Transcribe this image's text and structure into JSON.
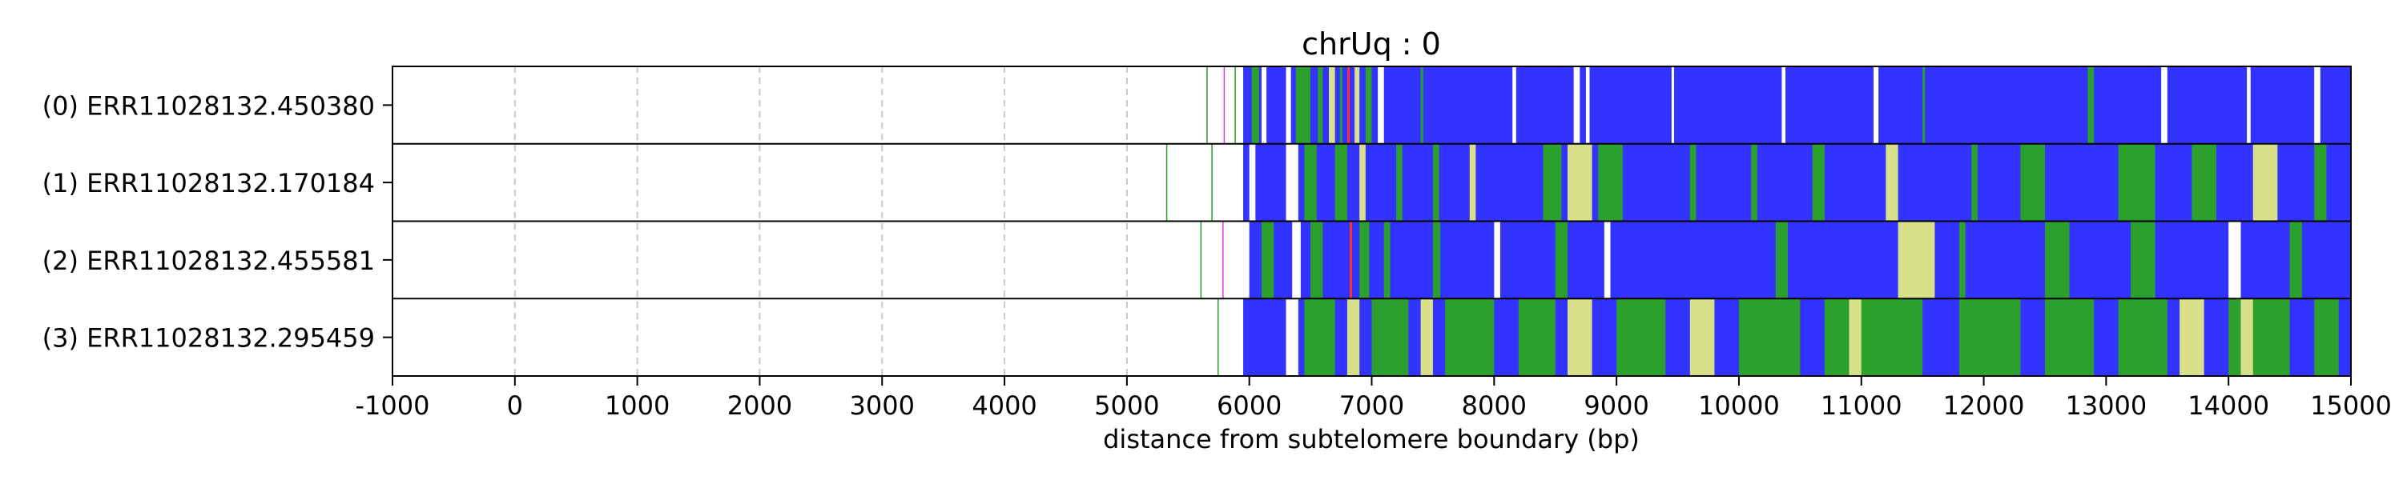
{
  "chart_data": {
    "type": "heatmap",
    "title": "chrUq : 0",
    "xlabel": "distance from subtelomere boundary (bp)",
    "ylabel": "",
    "xlim": [
      -1000,
      15000
    ],
    "xticks": [
      -1000,
      0,
      1000,
      2000,
      3000,
      4000,
      5000,
      6000,
      7000,
      8000,
      9000,
      10000,
      11000,
      12000,
      13000,
      14000,
      15000
    ],
    "grid": "x-dashed",
    "colors": {
      "blue": "#3333ff",
      "green": "#2ca02c",
      "yellow": "#d9e08a",
      "red": "#ff3030",
      "magenta": "#e040e0",
      "white": "#ffffff"
    },
    "reads": [
      {
        "label": "(0) ERR11028132.450380",
        "start": 5950,
        "base": "blue",
        "segments": [
          {
            "x0": 5650,
            "x1": 5660,
            "c": "green"
          },
          {
            "x0": 5790,
            "x1": 5800,
            "c": "magenta"
          },
          {
            "x0": 5880,
            "x1": 5890,
            "c": "green"
          },
          {
            "x0": 6020,
            "x1": 6080,
            "c": "green"
          },
          {
            "x0": 6100,
            "x1": 6140,
            "c": "white"
          },
          {
            "x0": 6300,
            "x1": 6340,
            "c": "white"
          },
          {
            "x0": 6380,
            "x1": 6500,
            "c": "green"
          },
          {
            "x0": 6560,
            "x1": 6600,
            "c": "green"
          },
          {
            "x0": 6650,
            "x1": 6700,
            "c": "yellow"
          },
          {
            "x0": 6740,
            "x1": 6760,
            "c": "green"
          },
          {
            "x0": 6800,
            "x1": 6820,
            "c": "red"
          },
          {
            "x0": 6860,
            "x1": 6900,
            "c": "yellow"
          },
          {
            "x0": 6950,
            "x1": 7000,
            "c": "green"
          },
          {
            "x0": 7050,
            "x1": 7100,
            "c": "white"
          },
          {
            "x0": 7400,
            "x1": 7420,
            "c": "green"
          },
          {
            "x0": 8150,
            "x1": 8180,
            "c": "white"
          },
          {
            "x0": 8650,
            "x1": 8700,
            "c": "white"
          },
          {
            "x0": 8750,
            "x1": 8780,
            "c": "white"
          },
          {
            "x0": 9450,
            "x1": 9470,
            "c": "white"
          },
          {
            "x0": 10350,
            "x1": 10380,
            "c": "white"
          },
          {
            "x0": 11100,
            "x1": 11140,
            "c": "white"
          },
          {
            "x0": 11500,
            "x1": 11520,
            "c": "green"
          },
          {
            "x0": 12850,
            "x1": 12900,
            "c": "green"
          },
          {
            "x0": 13450,
            "x1": 13500,
            "c": "white"
          },
          {
            "x0": 14150,
            "x1": 14180,
            "c": "white"
          },
          {
            "x0": 14700,
            "x1": 14750,
            "c": "white"
          }
        ]
      },
      {
        "label": "(1) ERR11028132.170184",
        "start": 5950,
        "base": "blue",
        "segments": [
          {
            "x0": 5320,
            "x1": 5330,
            "c": "green"
          },
          {
            "x0": 5690,
            "x1": 5700,
            "c": "green"
          },
          {
            "x0": 6000,
            "x1": 6050,
            "c": "white"
          },
          {
            "x0": 6300,
            "x1": 6400,
            "c": "white"
          },
          {
            "x0": 6450,
            "x1": 6550,
            "c": "green"
          },
          {
            "x0": 6700,
            "x1": 6800,
            "c": "green"
          },
          {
            "x0": 6900,
            "x1": 6950,
            "c": "yellow"
          },
          {
            "x0": 7200,
            "x1": 7250,
            "c": "green"
          },
          {
            "x0": 7500,
            "x1": 7550,
            "c": "green"
          },
          {
            "x0": 7800,
            "x1": 7850,
            "c": "yellow"
          },
          {
            "x0": 8400,
            "x1": 8550,
            "c": "green"
          },
          {
            "x0": 8600,
            "x1": 8800,
            "c": "yellow"
          },
          {
            "x0": 8850,
            "x1": 9050,
            "c": "green"
          },
          {
            "x0": 9600,
            "x1": 9650,
            "c": "green"
          },
          {
            "x0": 10100,
            "x1": 10150,
            "c": "green"
          },
          {
            "x0": 10600,
            "x1": 10700,
            "c": "green"
          },
          {
            "x0": 11200,
            "x1": 11300,
            "c": "yellow"
          },
          {
            "x0": 11900,
            "x1": 11950,
            "c": "green"
          },
          {
            "x0": 12300,
            "x1": 12500,
            "c": "green"
          },
          {
            "x0": 13100,
            "x1": 13400,
            "c": "green"
          },
          {
            "x0": 13700,
            "x1": 13900,
            "c": "green"
          },
          {
            "x0": 14200,
            "x1": 14400,
            "c": "yellow"
          },
          {
            "x0": 14700,
            "x1": 14800,
            "c": "green"
          }
        ]
      },
      {
        "label": "(2) ERR11028132.455581",
        "start": 5950,
        "base": "blue",
        "segments": [
          {
            "x0": 5600,
            "x1": 5610,
            "c": "green"
          },
          {
            "x0": 5780,
            "x1": 5790,
            "c": "magenta"
          },
          {
            "x0": 5950,
            "x1": 6000,
            "c": "white"
          },
          {
            "x0": 6100,
            "x1": 6200,
            "c": "green"
          },
          {
            "x0": 6350,
            "x1": 6420,
            "c": "white"
          },
          {
            "x0": 6500,
            "x1": 6600,
            "c": "green"
          },
          {
            "x0": 6820,
            "x1": 6840,
            "c": "red"
          },
          {
            "x0": 6900,
            "x1": 6980,
            "c": "green"
          },
          {
            "x0": 7100,
            "x1": 7150,
            "c": "green"
          },
          {
            "x0": 7500,
            "x1": 7560,
            "c": "green"
          },
          {
            "x0": 8000,
            "x1": 8050,
            "c": "white"
          },
          {
            "x0": 8500,
            "x1": 8600,
            "c": "green"
          },
          {
            "x0": 8900,
            "x1": 8950,
            "c": "white"
          },
          {
            "x0": 10300,
            "x1": 10400,
            "c": "green"
          },
          {
            "x0": 11300,
            "x1": 11600,
            "c": "yellow"
          },
          {
            "x0": 11800,
            "x1": 11850,
            "c": "green"
          },
          {
            "x0": 12500,
            "x1": 12700,
            "c": "green"
          },
          {
            "x0": 13200,
            "x1": 13400,
            "c": "green"
          },
          {
            "x0": 14000,
            "x1": 14100,
            "c": "white"
          },
          {
            "x0": 14500,
            "x1": 14600,
            "c": "green"
          }
        ]
      },
      {
        "label": "(3) ERR11028132.295459",
        "start": 5950,
        "base": "blue",
        "segments": [
          {
            "x0": 5740,
            "x1": 5750,
            "c": "green"
          },
          {
            "x0": 6300,
            "x1": 6400,
            "c": "white"
          },
          {
            "x0": 6450,
            "x1": 6700,
            "c": "green"
          },
          {
            "x0": 6800,
            "x1": 6900,
            "c": "yellow"
          },
          {
            "x0": 7000,
            "x1": 7300,
            "c": "green"
          },
          {
            "x0": 7400,
            "x1": 7500,
            "c": "yellow"
          },
          {
            "x0": 7600,
            "x1": 8000,
            "c": "green"
          },
          {
            "x0": 8200,
            "x1": 8500,
            "c": "green"
          },
          {
            "x0": 8600,
            "x1": 8800,
            "c": "yellow"
          },
          {
            "x0": 9000,
            "x1": 9400,
            "c": "green"
          },
          {
            "x0": 9600,
            "x1": 9800,
            "c": "yellow"
          },
          {
            "x0": 10000,
            "x1": 10500,
            "c": "green"
          },
          {
            "x0": 10700,
            "x1": 11500,
            "c": "green"
          },
          {
            "x0": 10900,
            "x1": 11000,
            "c": "yellow"
          },
          {
            "x0": 11800,
            "x1": 12300,
            "c": "green"
          },
          {
            "x0": 12500,
            "x1": 12900,
            "c": "green"
          },
          {
            "x0": 13100,
            "x1": 13500,
            "c": "green"
          },
          {
            "x0": 13600,
            "x1": 13800,
            "c": "yellow"
          },
          {
            "x0": 14000,
            "x1": 14500,
            "c": "green"
          },
          {
            "x0": 14100,
            "x1": 14200,
            "c": "yellow"
          },
          {
            "x0": 14700,
            "x1": 14900,
            "c": "green"
          }
        ]
      }
    ]
  }
}
